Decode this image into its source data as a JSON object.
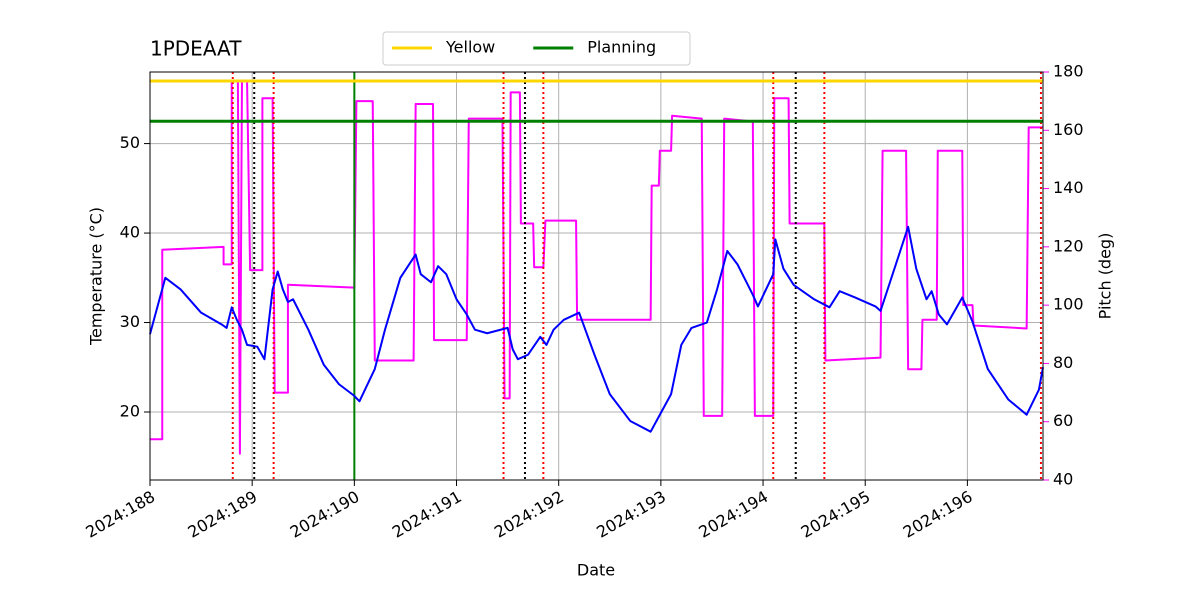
{
  "chart_data": {
    "type": "line",
    "title": "1PDEAAT",
    "xlabel": "Date",
    "ylabel": "Temperature (°C)",
    "y2label": "Pitch (deg)",
    "xlim": [
      188,
      196.74
    ],
    "ylim": [
      12.4,
      58.0
    ],
    "y2lim": [
      40,
      180
    ],
    "xticks": [
      {
        "value": 188,
        "label": "2024:188"
      },
      {
        "value": 189,
        "label": "2024:189"
      },
      {
        "value": 190,
        "label": "2024:190"
      },
      {
        "value": 191,
        "label": "2024:191"
      },
      {
        "value": 192,
        "label": "2024:192"
      },
      {
        "value": 193,
        "label": "2024:193"
      },
      {
        "value": 194,
        "label": "2024:194"
      },
      {
        "value": 195,
        "label": "2024:195"
      },
      {
        "value": 196,
        "label": "2024:196"
      }
    ],
    "yticks": [
      20,
      30,
      40,
      50
    ],
    "y2ticks": [
      40,
      60,
      80,
      100,
      120,
      140,
      160,
      180
    ],
    "grid": true,
    "legend": "top",
    "y2color": "#ff00ff",
    "hlines": [
      {
        "name": "Yellow",
        "color": "#ffd700",
        "value": 57
      },
      {
        "name": "Planning",
        "color": "#008000",
        "value": 52.5
      }
    ],
    "vlines": [
      {
        "x": 188.81,
        "color": "#ff0000",
        "style": "dotted"
      },
      {
        "x": 189.21,
        "color": "#ff0000",
        "style": "dotted"
      },
      {
        "x": 191.46,
        "color": "#ff0000",
        "style": "dotted"
      },
      {
        "x": 191.85,
        "color": "#ff0000",
        "style": "dotted"
      },
      {
        "x": 194.1,
        "color": "#ff0000",
        "style": "dotted"
      },
      {
        "x": 194.6,
        "color": "#ff0000",
        "style": "dotted"
      },
      {
        "x": 196.72,
        "color": "#ff0000",
        "style": "dotted"
      },
      {
        "x": 189.02,
        "color": "#000000",
        "style": "dotted"
      },
      {
        "x": 191.67,
        "color": "#000000",
        "style": "dotted"
      },
      {
        "x": 194.32,
        "color": "#000000",
        "style": "dotted"
      },
      {
        "x": 190.0,
        "color": "#008000",
        "style": "solid"
      }
    ],
    "series": [
      {
        "color": "#ff00ff",
        "axis": "y2",
        "x": [
          188.0,
          188.12,
          188.12,
          188.72,
          188.72,
          188.8,
          188.8,
          188.86,
          188.88,
          188.9,
          188.95,
          188.98,
          189.1,
          189.1,
          189.2,
          189.22,
          189.35,
          189.35,
          190.0,
          190.02,
          190.18,
          190.2,
          190.58,
          190.6,
          190.77,
          190.78,
          191.1,
          191.12,
          191.45,
          191.47,
          191.52,
          191.53,
          191.62,
          191.63,
          191.75,
          191.76,
          191.85,
          191.87,
          192.17,
          192.18,
          192.9,
          192.91,
          192.98,
          192.99,
          193.1,
          193.11,
          193.4,
          193.42,
          193.6,
          193.62,
          193.9,
          193.92,
          194.1,
          194.11,
          194.25,
          194.26,
          194.6,
          194.61,
          195.15,
          195.17,
          195.4,
          195.42,
          195.55,
          195.56,
          195.7,
          195.71,
          195.95,
          195.96,
          196.05,
          196.06,
          196.58,
          196.6,
          196.74
        ],
        "values": [
          54,
          54,
          119,
          120,
          114,
          114,
          177,
          177,
          49,
          177,
          177,
          112,
          112,
          171,
          171,
          70,
          70,
          107,
          106,
          170,
          170,
          81,
          81,
          169,
          169,
          88,
          88,
          164,
          164,
          68,
          68,
          173,
          173,
          128,
          128,
          113,
          113,
          129,
          129,
          95,
          95,
          141,
          141,
          153,
          153,
          165,
          164,
          62,
          62,
          164,
          163,
          62,
          62,
          171,
          171,
          128,
          128,
          81,
          82,
          153,
          153,
          78,
          78,
          95,
          95,
          153,
          153,
          100,
          100,
          93,
          92,
          161,
          161
        ]
      },
      {
        "color": "#0000ff",
        "x": [
          188.0,
          188.15,
          188.3,
          188.5,
          188.7,
          188.75,
          188.8,
          188.85,
          188.9,
          188.95,
          189.05,
          189.12,
          189.2,
          189.25,
          189.3,
          189.35,
          189.4,
          189.55,
          189.7,
          189.85,
          190.0,
          190.05,
          190.2,
          190.3,
          190.45,
          190.6,
          190.65,
          190.75,
          190.82,
          190.9,
          191.0,
          191.1,
          191.18,
          191.3,
          191.5,
          191.55,
          191.6,
          191.7,
          191.82,
          191.88,
          191.95,
          192.05,
          192.2,
          192.35,
          192.5,
          192.7,
          192.9,
          193.0,
          193.1,
          193.2,
          193.3,
          193.45,
          193.55,
          193.65,
          193.75,
          193.9,
          193.95,
          194.1,
          194.12,
          194.2,
          194.3,
          194.5,
          194.65,
          194.75,
          194.9,
          195.1,
          195.15,
          195.3,
          195.42,
          195.5,
          195.6,
          195.65,
          195.72,
          195.8,
          195.95,
          196.05,
          196.2,
          196.4,
          196.58,
          196.7,
          196.74
        ],
        "values": [
          28.7,
          35.0,
          33.7,
          31.1,
          29.8,
          29.4,
          31.7,
          30.3,
          29.2,
          27.5,
          27.3,
          25.9,
          33.7,
          35.7,
          33.7,
          32.3,
          32.6,
          29.2,
          25.3,
          23.1,
          21.8,
          21.2,
          24.8,
          29.2,
          35.0,
          37.6,
          35.4,
          34.5,
          36.3,
          35.4,
          32.6,
          30.9,
          29.2,
          28.8,
          29.4,
          27.0,
          25.9,
          26.4,
          28.4,
          27.5,
          29.2,
          30.3,
          31.1,
          26.4,
          22.0,
          19.0,
          17.8,
          19.9,
          22.0,
          27.5,
          29.4,
          30.0,
          33.7,
          38.0,
          36.5,
          33.1,
          31.8,
          35.4,
          39.3,
          36.0,
          34.2,
          32.6,
          31.7,
          33.5,
          32.8,
          31.8,
          31.3,
          36.5,
          40.7,
          36.0,
          32.6,
          33.5,
          30.9,
          29.8,
          32.8,
          30.1,
          24.8,
          21.4,
          19.7,
          22.5,
          25.0
        ]
      }
    ]
  }
}
